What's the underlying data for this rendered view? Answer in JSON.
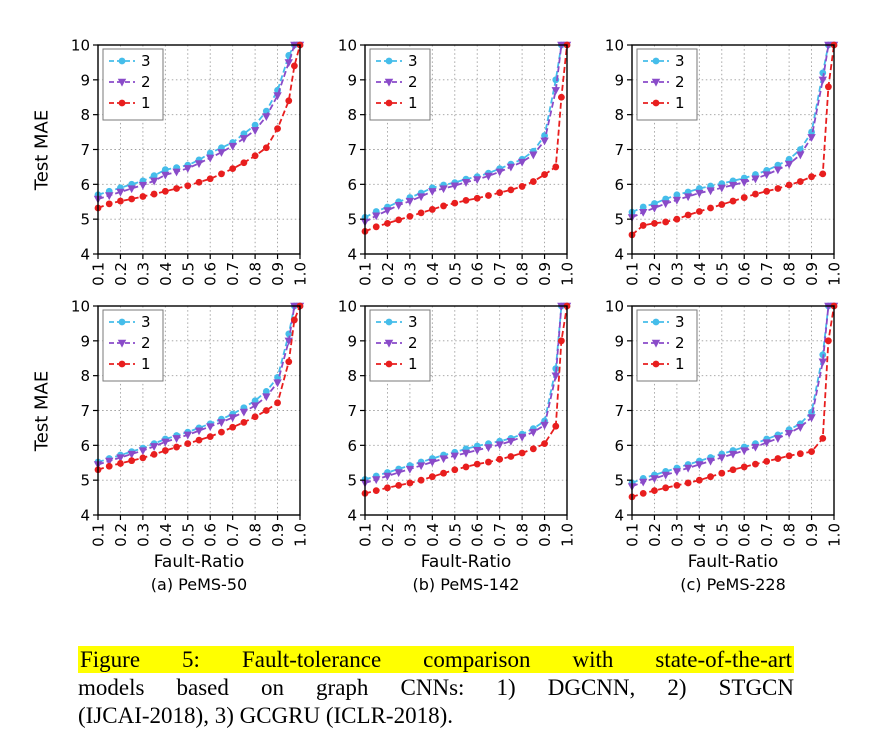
{
  "figure": {
    "ylabel": "Test MAE",
    "xlabel": "Fault-Ratio",
    "xlim": [
      0.1,
      1.0
    ],
    "ylim": [
      4,
      10
    ],
    "xticks": [
      0.1,
      0.2,
      0.3,
      0.4,
      0.5,
      0.6,
      0.7,
      0.8,
      0.9,
      1.0
    ],
    "yticks": [
      4,
      5,
      6,
      7,
      8,
      9,
      10
    ],
    "legend_order": [
      "3",
      "2",
      "1"
    ],
    "series_styles": {
      "3": {
        "color": "#45bdea",
        "marker": "circle"
      },
      "2": {
        "color": "#8a4bc9",
        "marker": "triangle-down"
      },
      "1": {
        "color": "#e81e1e",
        "marker": "circle"
      }
    },
    "subcaptions": [
      "(a) PeMS-50",
      "(b) PeMS-142",
      "(c) PeMS-228"
    ]
  },
  "chart_data": [
    {
      "type": "line",
      "name": "PeMS-50 top",
      "x": [
        0.1,
        0.15,
        0.2,
        0.25,
        0.3,
        0.35,
        0.4,
        0.45,
        0.5,
        0.55,
        0.6,
        0.65,
        0.7,
        0.75,
        0.8,
        0.85,
        0.9,
        0.95,
        0.975,
        1.0
      ],
      "series": [
        {
          "name": "3",
          "values": [
            5.7,
            5.8,
            5.9,
            6.0,
            6.1,
            6.25,
            6.42,
            6.48,
            6.55,
            6.7,
            6.9,
            7.05,
            7.2,
            7.45,
            7.7,
            8.1,
            8.7,
            9.7,
            10,
            10
          ]
        },
        {
          "name": "2",
          "values": [
            5.58,
            5.68,
            5.78,
            5.88,
            5.98,
            6.1,
            6.27,
            6.36,
            6.46,
            6.6,
            6.76,
            6.92,
            7.1,
            7.32,
            7.55,
            7.95,
            8.55,
            9.5,
            10,
            10
          ]
        },
        {
          "name": "1",
          "values": [
            5.32,
            5.44,
            5.52,
            5.58,
            5.65,
            5.72,
            5.8,
            5.88,
            5.96,
            6.06,
            6.16,
            6.3,
            6.45,
            6.62,
            6.82,
            7.05,
            7.6,
            8.4,
            9.4,
            10
          ]
        }
      ]
    },
    {
      "type": "line",
      "name": "PeMS-142 top",
      "x": [
        0.1,
        0.15,
        0.2,
        0.25,
        0.3,
        0.35,
        0.4,
        0.45,
        0.5,
        0.55,
        0.6,
        0.65,
        0.7,
        0.75,
        0.8,
        0.85,
        0.9,
        0.95,
        0.975,
        1.0
      ],
      "series": [
        {
          "name": "3",
          "values": [
            5.05,
            5.22,
            5.35,
            5.5,
            5.62,
            5.75,
            5.9,
            5.98,
            6.05,
            6.15,
            6.22,
            6.32,
            6.45,
            6.58,
            6.72,
            6.95,
            7.4,
            9.0,
            10,
            10
          ]
        },
        {
          "name": "2",
          "values": [
            4.92,
            5.1,
            5.25,
            5.4,
            5.52,
            5.65,
            5.8,
            5.88,
            5.96,
            6.06,
            6.14,
            6.24,
            6.36,
            6.5,
            6.64,
            6.85,
            7.25,
            8.7,
            10,
            10
          ]
        },
        {
          "name": "1",
          "values": [
            4.65,
            4.78,
            4.88,
            4.98,
            5.08,
            5.18,
            5.28,
            5.38,
            5.46,
            5.54,
            5.6,
            5.68,
            5.76,
            5.84,
            5.94,
            6.08,
            6.28,
            6.5,
            8.5,
            10
          ]
        }
      ]
    },
    {
      "type": "line",
      "name": "PeMS-228 top",
      "x": [
        0.1,
        0.15,
        0.2,
        0.25,
        0.3,
        0.35,
        0.4,
        0.45,
        0.5,
        0.55,
        0.6,
        0.65,
        0.7,
        0.75,
        0.8,
        0.85,
        0.9,
        0.95,
        0.975,
        1.0
      ],
      "series": [
        {
          "name": "3",
          "values": [
            5.2,
            5.35,
            5.45,
            5.58,
            5.7,
            5.78,
            5.88,
            5.95,
            6.02,
            6.1,
            6.18,
            6.28,
            6.4,
            6.55,
            6.72,
            7.0,
            7.5,
            9.2,
            10,
            10
          ]
        },
        {
          "name": "2",
          "values": [
            5.05,
            5.2,
            5.32,
            5.45,
            5.55,
            5.65,
            5.75,
            5.82,
            5.9,
            5.98,
            6.06,
            6.16,
            6.28,
            6.42,
            6.58,
            6.85,
            7.35,
            9.0,
            10,
            10
          ]
        },
        {
          "name": "1",
          "values": [
            4.55,
            4.82,
            4.88,
            4.92,
            5.0,
            5.12,
            5.22,
            5.32,
            5.42,
            5.52,
            5.62,
            5.72,
            5.8,
            5.88,
            5.98,
            6.08,
            6.22,
            6.3,
            8.8,
            10
          ]
        }
      ]
    },
    {
      "type": "line",
      "name": "PeMS-50 bottom",
      "x": [
        0.1,
        0.15,
        0.2,
        0.25,
        0.3,
        0.35,
        0.4,
        0.45,
        0.5,
        0.55,
        0.6,
        0.65,
        0.7,
        0.75,
        0.8,
        0.85,
        0.9,
        0.95,
        0.975,
        1.0
      ],
      "series": [
        {
          "name": "3",
          "values": [
            5.52,
            5.62,
            5.72,
            5.82,
            5.92,
            6.05,
            6.18,
            6.28,
            6.38,
            6.5,
            6.62,
            6.75,
            6.9,
            7.08,
            7.28,
            7.55,
            7.95,
            9.2,
            10,
            10
          ]
        },
        {
          "name": "2",
          "values": [
            5.45,
            5.55,
            5.65,
            5.75,
            5.85,
            5.97,
            6.1,
            6.2,
            6.3,
            6.42,
            6.54,
            6.66,
            6.8,
            6.96,
            7.14,
            7.4,
            7.8,
            9.0,
            10,
            10
          ]
        },
        {
          "name": "1",
          "values": [
            5.3,
            5.4,
            5.48,
            5.56,
            5.64,
            5.74,
            5.85,
            5.95,
            6.05,
            6.15,
            6.25,
            6.38,
            6.52,
            6.66,
            6.82,
            7.0,
            7.22,
            8.4,
            9.6,
            10
          ]
        }
      ]
    },
    {
      "type": "line",
      "name": "PeMS-142 bottom",
      "x": [
        0.1,
        0.15,
        0.2,
        0.25,
        0.3,
        0.35,
        0.4,
        0.45,
        0.5,
        0.55,
        0.6,
        0.65,
        0.7,
        0.75,
        0.8,
        0.85,
        0.9,
        0.95,
        0.975,
        1.0
      ],
      "series": [
        {
          "name": "3",
          "values": [
            5.02,
            5.12,
            5.22,
            5.32,
            5.42,
            5.52,
            5.62,
            5.72,
            5.8,
            5.9,
            5.98,
            6.05,
            6.12,
            6.2,
            6.32,
            6.48,
            6.7,
            8.2,
            10,
            10
          ]
        },
        {
          "name": "2",
          "values": [
            4.92,
            5.02,
            5.12,
            5.22,
            5.32,
            5.42,
            5.52,
            5.62,
            5.7,
            5.78,
            5.86,
            5.94,
            6.02,
            6.12,
            6.24,
            6.38,
            6.58,
            8.0,
            10,
            10
          ]
        },
        {
          "name": "1",
          "values": [
            4.62,
            4.7,
            4.78,
            4.85,
            4.92,
            5.0,
            5.1,
            5.2,
            5.3,
            5.38,
            5.46,
            5.52,
            5.6,
            5.68,
            5.78,
            5.9,
            6.05,
            6.55,
            9.0,
            10
          ]
        }
      ]
    },
    {
      "type": "line",
      "name": "PeMS-228 bottom",
      "x": [
        0.1,
        0.15,
        0.2,
        0.25,
        0.3,
        0.35,
        0.4,
        0.45,
        0.5,
        0.55,
        0.6,
        0.65,
        0.7,
        0.75,
        0.8,
        0.85,
        0.9,
        0.95,
        0.975,
        1.0
      ],
      "series": [
        {
          "name": "3",
          "values": [
            4.92,
            5.05,
            5.15,
            5.25,
            5.35,
            5.45,
            5.55,
            5.65,
            5.75,
            5.85,
            5.95,
            6.05,
            6.18,
            6.3,
            6.45,
            6.62,
            6.95,
            8.6,
            10,
            10
          ]
        },
        {
          "name": "2",
          "values": [
            4.82,
            4.95,
            5.05,
            5.15,
            5.25,
            5.35,
            5.45,
            5.55,
            5.65,
            5.75,
            5.85,
            5.95,
            6.08,
            6.2,
            6.35,
            6.52,
            6.8,
            8.4,
            10,
            10
          ]
        },
        {
          "name": "1",
          "values": [
            4.52,
            4.62,
            4.7,
            4.78,
            4.85,
            4.92,
            5.0,
            5.1,
            5.2,
            5.3,
            5.38,
            5.46,
            5.54,
            5.62,
            5.7,
            5.76,
            5.82,
            6.2,
            9.0,
            10
          ]
        }
      ]
    }
  ],
  "caption": {
    "line1": "Figure 5: Fault-tolerance comparison with state-of-the-art",
    "line2": "models based on graph CNNs: 1) DGCNN, 2) STGCN",
    "line3": "(IJCAI-2018), 3) GCGRU (ICLR-2018)."
  }
}
